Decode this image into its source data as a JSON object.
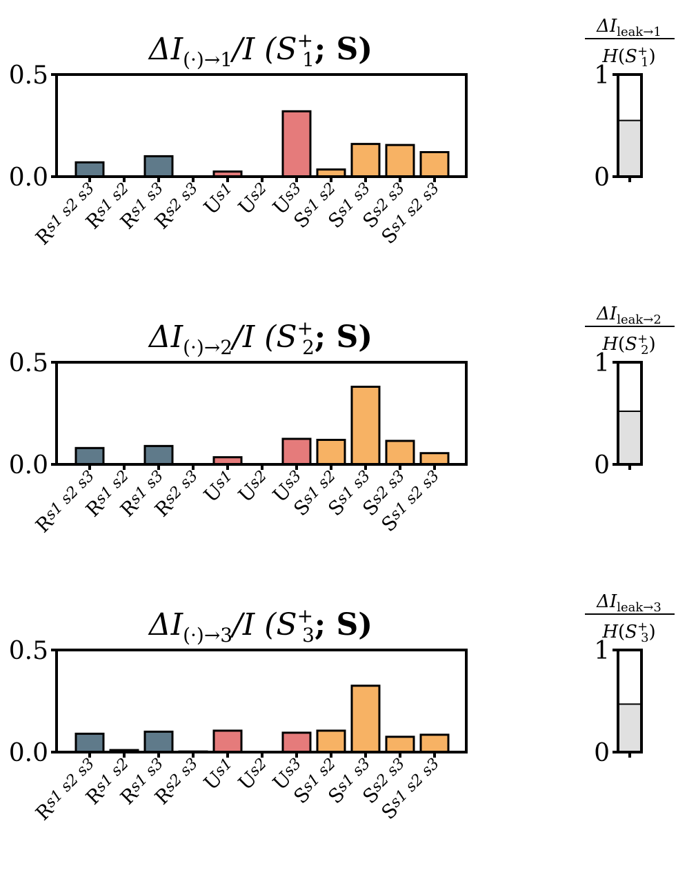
{
  "chart_data": [
    {
      "type": "bar",
      "title": "ΔI(·)→1/I (S1+; S)",
      "title_parts": {
        "delta": "ΔI",
        "sub": "(·)→1",
        "mid": "/I (S",
        "sup_s": "+",
        "sub_s": "1",
        "end": "; S)"
      },
      "categories": [
        "R{s1 s2 s3}",
        "R{s1 s2}",
        "R{s1 s3}",
        "R{s2 s3}",
        "U{s1}",
        "U{s2}",
        "U{s3}",
        "S{s1 s2}",
        "S{s1 s3}",
        "S{s2 s3}",
        "S{s1 s2 s3}"
      ],
      "values": [
        0.07,
        0.0,
        0.1,
        0.0,
        0.025,
        0.0,
        0.32,
        0.035,
        0.16,
        0.155,
        0.12
      ],
      "ylim": [
        0,
        0.5
      ],
      "yticks": [
        "0.0",
        "0.5"
      ],
      "leak": {
        "label_num": "ΔI",
        "label_num_sub": "leak→1",
        "label_den": "H(S1+)",
        "den_h": "H",
        "den_s": "S",
        "den_sub": "1",
        "den_sup": "+",
        "value": 0.55,
        "ylim": [
          0,
          1
        ],
        "yticks": [
          "0",
          "1"
        ]
      }
    },
    {
      "type": "bar",
      "title": "ΔI(·)→2/I (S2+; S)",
      "title_parts": {
        "delta": "ΔI",
        "sub": "(·)→2",
        "mid": "/I (S",
        "sup_s": "+",
        "sub_s": "2",
        "end": "; S)"
      },
      "categories": [
        "R{s1 s2 s3}",
        "R{s1 s2}",
        "R{s1 s3}",
        "R{s2 s3}",
        "U{s1}",
        "U{s2}",
        "U{s3}",
        "S{s1 s2}",
        "S{s1 s3}",
        "S{s2 s3}",
        "S{s1 s2 s3}"
      ],
      "values": [
        0.08,
        0.0,
        0.09,
        0.0,
        0.035,
        0.0,
        0.125,
        0.12,
        0.38,
        0.115,
        0.055
      ],
      "ylim": [
        0,
        0.5
      ],
      "yticks": [
        "0.0",
        "0.5"
      ],
      "leak": {
        "label_num": "ΔI",
        "label_num_sub": "leak→2",
        "label_den": "H(S2+)",
        "den_h": "H",
        "den_s": "S",
        "den_sub": "2",
        "den_sup": "+",
        "value": 0.52,
        "ylim": [
          0,
          1
        ],
        "yticks": [
          "0",
          "1"
        ]
      }
    },
    {
      "type": "bar",
      "title": "ΔI(·)→3/I (S3+; S)",
      "title_parts": {
        "delta": "ΔI",
        "sub": "(·)→3",
        "mid": "/I (S",
        "sup_s": "+",
        "sub_s": "3",
        "end": "; S)"
      },
      "categories": [
        "R{s1 s2 s3}",
        "R{s1 s2}",
        "R{s1 s3}",
        "R{s2 s3}",
        "U{s1}",
        "U{s2}",
        "U{s3}",
        "S{s1 s2}",
        "S{s1 s3}",
        "S{s2 s3}",
        "S{s1 s2 s3}"
      ],
      "values": [
        0.09,
        0.01,
        0.1,
        0.003,
        0.105,
        0.0,
        0.095,
        0.105,
        0.325,
        0.075,
        0.085
      ],
      "ylim": [
        0,
        0.5
      ],
      "yticks": [
        "0.0",
        "0.5"
      ],
      "leak": {
        "label_num": "ΔI",
        "label_num_sub": "leak→3",
        "label_den": "H(S3+)",
        "den_h": "H",
        "den_s": "S",
        "den_sub": "3",
        "den_sup": "+",
        "value": 0.47,
        "ylim": [
          0,
          1
        ],
        "yticks": [
          "0",
          "1"
        ]
      }
    }
  ],
  "category_labels": [
    {
      "letter": "R",
      "sub": "s1 s2 s3"
    },
    {
      "letter": "R",
      "sub": "s1 s2"
    },
    {
      "letter": "R",
      "sub": "s1 s3"
    },
    {
      "letter": "R",
      "sub": "s2 s3"
    },
    {
      "letter": "U",
      "sub": "s1"
    },
    {
      "letter": "U",
      "sub": "s2"
    },
    {
      "letter": "U",
      "sub": "s3"
    },
    {
      "letter": "S",
      "sub": "s1 s2"
    },
    {
      "letter": "S",
      "sub": "s1 s3"
    },
    {
      "letter": "S",
      "sub": "s2 s3"
    },
    {
      "letter": "S",
      "sub": "s1 s2 s3"
    }
  ],
  "colors": {
    "redundancy": "#5f7a8a",
    "unique": "#e57b7b",
    "synergy": "#f7b264",
    "leak_fill": "#e0e0e0",
    "axis": "#000000"
  },
  "category_groups": [
    "redundancy",
    "redundancy",
    "redundancy",
    "redundancy",
    "unique",
    "unique",
    "unique",
    "synergy",
    "synergy",
    "synergy",
    "synergy"
  ]
}
